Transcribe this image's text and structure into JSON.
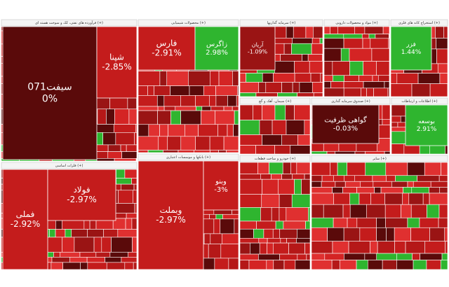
{
  "sectors": [
    {
      "title": "فرآورده های نفتی، کک و سوخت هسته ای (+)",
      "tiles": [
        {
          "name": "سیفت071",
          "change": "0%"
        },
        {
          "name": "شپنا",
          "change": "-2.85%"
        }
      ]
    },
    {
      "title": "محصولات شیمیایی (+)",
      "tiles": [
        {
          "name": "فارس",
          "change": "-2.91%"
        },
        {
          "name": "زاگرس",
          "change": "2.98%"
        }
      ]
    },
    {
      "title": "سرمایه گذاریها (+)",
      "tiles": [
        {
          "name": "آریان",
          "change": "-1.09%"
        }
      ]
    },
    {
      "title": "مواد و محصولات دارویی (+)",
      "tiles": []
    },
    {
      "title": "استخراج کانه های فلزی (+)",
      "tiles": [
        {
          "name": "فزر",
          "change": "1.44%"
        }
      ]
    },
    {
      "title": "فلزات اساسی (+)",
      "tiles": [
        {
          "name": "فملی",
          "change": "-2.92%"
        },
        {
          "name": "فولاد",
          "change": "-2.97%"
        }
      ]
    },
    {
      "title": "بانکها و موسسات اعتباری (+)",
      "tiles": [
        {
          "name": "وبملت",
          "change": "-2.97%"
        },
        {
          "name": "وبنو",
          "change": "-3%"
        }
      ]
    },
    {
      "title": "سیمان، آهک و گچ (+)",
      "tiles": []
    },
    {
      "title": "صندوق سرمایه گذاری (+)",
      "tiles": [
        {
          "name": "گواهی ظرفیت",
          "change": "-0.03%"
        }
      ]
    },
    {
      "title": "اطلاعات و ارتباطات (+)",
      "tiles": [
        {
          "name": "بوسعه",
          "change": "2.91%"
        }
      ]
    },
    {
      "title": "خودرو و ساخت قطعات (+)",
      "tiles": []
    },
    {
      "title": "سایر (+)",
      "tiles": []
    }
  ]
}
